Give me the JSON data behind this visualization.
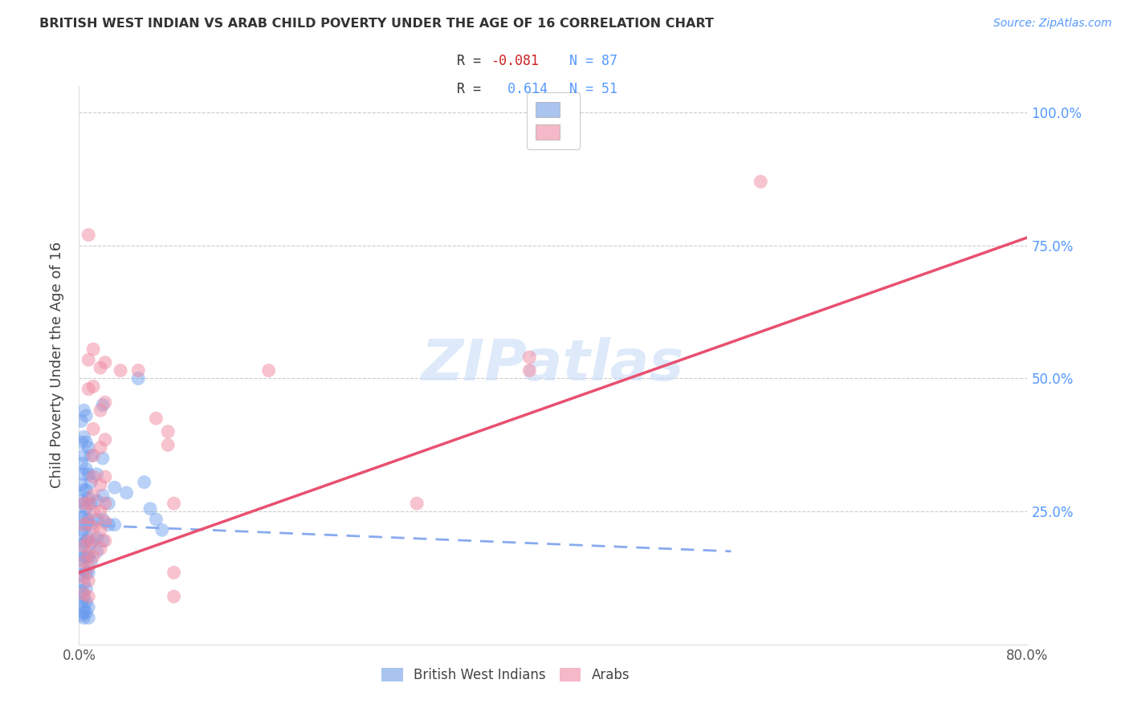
{
  "title": "BRITISH WEST INDIAN VS ARAB CHILD POVERTY UNDER THE AGE OF 16 CORRELATION CHART",
  "source": "Source: ZipAtlas.com",
  "ylabel": "Child Poverty Under the Age of 16",
  "xlim": [
    0.0,
    0.8
  ],
  "ylim": [
    0.0,
    1.05
  ],
  "ytick_positions": [
    0.25,
    0.5,
    0.75,
    1.0
  ],
  "ytick_labels": [
    "25.0%",
    "50.0%",
    "75.0%",
    "100.0%"
  ],
  "watermark": "ZIPatlas",
  "bwi_color": "#6699ee",
  "arab_color": "#f088a0",
  "bwi_line_color": "#88aaee",
  "arab_line_color": "#e85070",
  "bwi_legend_color": "#aac4f0",
  "arab_legend_color": "#f5b8c8",
  "bwi_scatter": [
    [
      0.002,
      0.42
    ],
    [
      0.002,
      0.38
    ],
    [
      0.002,
      0.34
    ],
    [
      0.002,
      0.3
    ],
    [
      0.002,
      0.27
    ],
    [
      0.002,
      0.24
    ],
    [
      0.002,
      0.21
    ],
    [
      0.002,
      0.185
    ],
    [
      0.002,
      0.16
    ],
    [
      0.002,
      0.13
    ],
    [
      0.002,
      0.1
    ],
    [
      0.004,
      0.44
    ],
    [
      0.004,
      0.39
    ],
    [
      0.004,
      0.355
    ],
    [
      0.004,
      0.32
    ],
    [
      0.004,
      0.29
    ],
    [
      0.004,
      0.265
    ],
    [
      0.004,
      0.24
    ],
    [
      0.004,
      0.215
    ],
    [
      0.004,
      0.19
    ],
    [
      0.004,
      0.165
    ],
    [
      0.004,
      0.14
    ],
    [
      0.004,
      0.115
    ],
    [
      0.004,
      0.09
    ],
    [
      0.004,
      0.06
    ],
    [
      0.006,
      0.43
    ],
    [
      0.006,
      0.38
    ],
    [
      0.006,
      0.33
    ],
    [
      0.006,
      0.29
    ],
    [
      0.006,
      0.255
    ],
    [
      0.006,
      0.225
    ],
    [
      0.006,
      0.195
    ],
    [
      0.006,
      0.165
    ],
    [
      0.006,
      0.135
    ],
    [
      0.006,
      0.105
    ],
    [
      0.008,
      0.37
    ],
    [
      0.008,
      0.32
    ],
    [
      0.008,
      0.275
    ],
    [
      0.008,
      0.235
    ],
    [
      0.008,
      0.2
    ],
    [
      0.008,
      0.165
    ],
    [
      0.008,
      0.135
    ],
    [
      0.01,
      0.355
    ],
    [
      0.01,
      0.305
    ],
    [
      0.01,
      0.265
    ],
    [
      0.01,
      0.225
    ],
    [
      0.01,
      0.19
    ],
    [
      0.01,
      0.155
    ],
    [
      0.015,
      0.32
    ],
    [
      0.015,
      0.27
    ],
    [
      0.015,
      0.235
    ],
    [
      0.015,
      0.2
    ],
    [
      0.015,
      0.175
    ],
    [
      0.02,
      0.45
    ],
    [
      0.02,
      0.35
    ],
    [
      0.02,
      0.28
    ],
    [
      0.02,
      0.235
    ],
    [
      0.02,
      0.195
    ],
    [
      0.025,
      0.265
    ],
    [
      0.025,
      0.225
    ],
    [
      0.03,
      0.295
    ],
    [
      0.03,
      0.225
    ],
    [
      0.04,
      0.285
    ],
    [
      0.05,
      0.5
    ],
    [
      0.055,
      0.305
    ],
    [
      0.06,
      0.255
    ],
    [
      0.065,
      0.235
    ],
    [
      0.07,
      0.215
    ],
    [
      0.002,
      0.055
    ],
    [
      0.002,
      0.08
    ],
    [
      0.004,
      0.05
    ],
    [
      0.004,
      0.07
    ],
    [
      0.006,
      0.06
    ],
    [
      0.006,
      0.08
    ],
    [
      0.008,
      0.05
    ],
    [
      0.008,
      0.07
    ]
  ],
  "arab_scatter": [
    [
      0.004,
      0.265
    ],
    [
      0.004,
      0.225
    ],
    [
      0.004,
      0.185
    ],
    [
      0.004,
      0.155
    ],
    [
      0.004,
      0.125
    ],
    [
      0.004,
      0.095
    ],
    [
      0.008,
      0.77
    ],
    [
      0.008,
      0.535
    ],
    [
      0.008,
      0.48
    ],
    [
      0.008,
      0.265
    ],
    [
      0.008,
      0.23
    ],
    [
      0.008,
      0.195
    ],
    [
      0.008,
      0.17
    ],
    [
      0.008,
      0.145
    ],
    [
      0.008,
      0.12
    ],
    [
      0.008,
      0.09
    ],
    [
      0.012,
      0.555
    ],
    [
      0.012,
      0.485
    ],
    [
      0.012,
      0.405
    ],
    [
      0.012,
      0.355
    ],
    [
      0.012,
      0.315
    ],
    [
      0.012,
      0.28
    ],
    [
      0.012,
      0.25
    ],
    [
      0.012,
      0.22
    ],
    [
      0.012,
      0.195
    ],
    [
      0.012,
      0.165
    ],
    [
      0.018,
      0.52
    ],
    [
      0.018,
      0.44
    ],
    [
      0.018,
      0.37
    ],
    [
      0.018,
      0.3
    ],
    [
      0.018,
      0.25
    ],
    [
      0.018,
      0.215
    ],
    [
      0.018,
      0.18
    ],
    [
      0.022,
      0.53
    ],
    [
      0.022,
      0.455
    ],
    [
      0.022,
      0.385
    ],
    [
      0.022,
      0.315
    ],
    [
      0.022,
      0.265
    ],
    [
      0.022,
      0.23
    ],
    [
      0.022,
      0.195
    ],
    [
      0.035,
      0.515
    ],
    [
      0.05,
      0.515
    ],
    [
      0.065,
      0.425
    ],
    [
      0.075,
      0.4
    ],
    [
      0.075,
      0.375
    ],
    [
      0.08,
      0.265
    ],
    [
      0.08,
      0.135
    ],
    [
      0.08,
      0.09
    ],
    [
      0.16,
      0.515
    ],
    [
      0.285,
      0.265
    ],
    [
      0.38,
      0.54
    ],
    [
      0.38,
      0.515
    ],
    [
      0.575,
      0.87
    ]
  ],
  "bwi_line": [
    [
      0.0,
      0.225
    ],
    [
      0.55,
      0.175
    ]
  ],
  "arab_line": [
    [
      0.0,
      0.135
    ],
    [
      0.8,
      0.765
    ]
  ]
}
